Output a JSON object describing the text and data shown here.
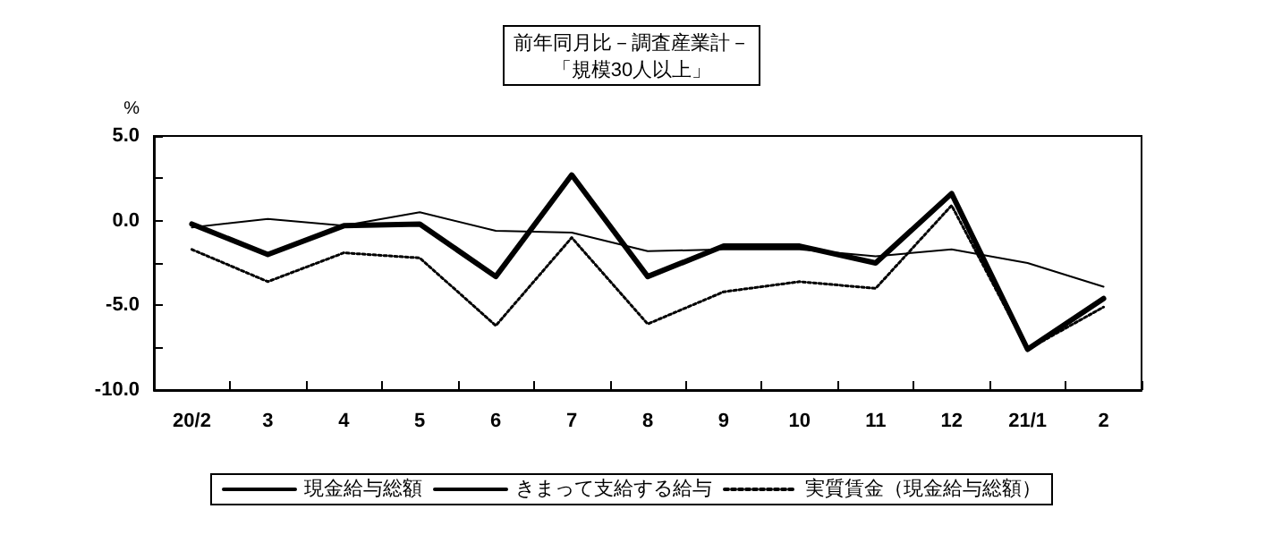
{
  "chart_data": {
    "type": "line",
    "title": "前年同月比－調査産業計－",
    "subtitle": "「規模30人以上」",
    "ylabel": "%",
    "categories": [
      "20/2",
      "3",
      "4",
      "5",
      "6",
      "7",
      "8",
      "9",
      "10",
      "11",
      "12",
      "21/1",
      "2"
    ],
    "series": [
      {
        "name": "現金給与総額",
        "color": "#000000",
        "line_style": "solid",
        "values": [
          -0.2,
          -2.0,
          -0.3,
          -0.2,
          -3.3,
          2.7,
          -3.3,
          -1.5,
          -1.5,
          -2.5,
          1.6,
          -7.6,
          -4.6
        ]
      },
      {
        "name": "きまって支給する給与",
        "color": "#000000",
        "line_style": "solid",
        "values": [
          -0.4,
          0.1,
          -0.3,
          0.5,
          -0.6,
          -0.7,
          -1.8,
          -1.7,
          -1.7,
          -2.1,
          -1.7,
          -2.5,
          -3.9
        ]
      },
      {
        "name": "実質賃金（現金給与総額）",
        "color": "#000000",
        "line_style": "dotted",
        "values": [
          -1.7,
          -3.6,
          -1.9,
          -2.2,
          -6.2,
          -1.0,
          -6.1,
          -4.2,
          -3.6,
          -4.0,
          0.9,
          -7.6,
          -5.1
        ]
      }
    ],
    "ylim": [
      -10,
      5
    ],
    "yticks": [
      {
        "value": 5,
        "label": "5.0"
      },
      {
        "value": 2.5,
        "label": null
      },
      {
        "value": 0,
        "label": "0.0"
      },
      {
        "value": -2.5,
        "label": null
      },
      {
        "value": -5,
        "label": "-5.0"
      },
      {
        "value": -7.5,
        "label": null
      },
      {
        "value": -10,
        "label": "-10.0"
      }
    ],
    "grid": false,
    "legend": "bottom",
    "marker": "none"
  }
}
